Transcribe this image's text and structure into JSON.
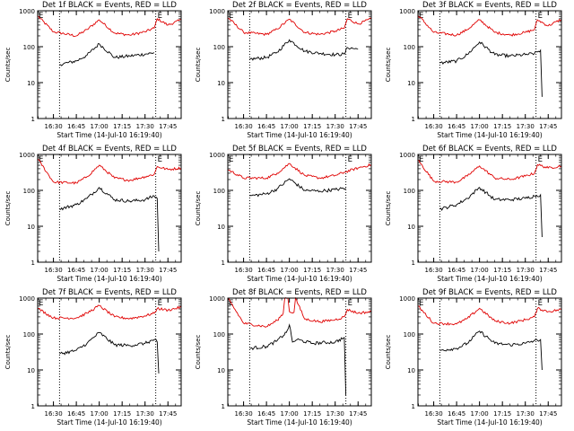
{
  "figure": {
    "panel_titles": [
      "Det 1f  BLACK = Events, RED = LLD",
      "Det 2f  BLACK = Events, RED = LLD",
      "Det 3f  BLACK = Events, RED = LLD",
      "Det 4f  BLACK = Events, RED = LLD",
      "Det 5f  BLACK = Events, RED = LLD",
      "Det 6f  BLACK = Events, RED = LLD",
      "Det 7f  BLACK = Events, RED = LLD",
      "Det 8f  BLACK = Events, RED = LLD",
      "Det 9f  BLACK = Events, RED = LLD"
    ],
    "ylabel": "Counts/sec",
    "xlabel": "Start Time (14-Jul-10 16:19:40)",
    "marker_letter": "E",
    "colors": {
      "events": "#000000",
      "lld": "#e00000",
      "axes": "#000000"
    }
  },
  "chart_data": {
    "type": "line",
    "layout": "3x3 grid",
    "x_unit": "time (UT, 14-Jul-10)",
    "xlim": [
      "16:19:40",
      "17:53:40"
    ],
    "x_ticks": [
      "16:30",
      "16:45",
      "17:00",
      "17:15",
      "17:30",
      "17:45"
    ],
    "y_scale": "log",
    "ylim": [
      1,
      1000
    ],
    "y_ticks": [
      "1",
      "10",
      "100",
      "1000"
    ],
    "vlines_dotted": [
      "16:34",
      "17:37"
    ],
    "panels": [
      {
        "title": "Det 1f  BLACK = Events, RED = LLD",
        "lld": {
          "x": [
            "16:19:40",
            "16:30",
            "16:45",
            "16:52",
            "17:00",
            "17:10",
            "17:20",
            "17:30",
            "17:36",
            "17:38",
            "17:45",
            "17:53:40"
          ],
          "y": [
            720,
            260,
            200,
            300,
            560,
            240,
            210,
            260,
            330,
            600,
            400,
            560
          ]
        },
        "events": {
          "x": [
            "16:34",
            "16:45",
            "16:52",
            "17:00",
            "17:10",
            "17:20",
            "17:30",
            "17:36"
          ],
          "y": [
            32,
            40,
            58,
            120,
            50,
            55,
            62,
            68
          ]
        }
      },
      {
        "title": "Det 2f  BLACK = Events, RED = LLD",
        "lld": {
          "x": [
            "16:19:40",
            "16:30",
            "16:45",
            "16:52",
            "17:00",
            "17:10",
            "17:20",
            "17:30",
            "17:36",
            "17:38",
            "17:45",
            "17:53:40"
          ],
          "y": [
            650,
            250,
            220,
            310,
            580,
            250,
            220,
            270,
            330,
            600,
            430,
            600
          ]
        },
        "events": {
          "x": [
            "16:34",
            "16:45",
            "16:52",
            "17:00",
            "17:10",
            "17:20",
            "17:30",
            "17:36",
            "17:38",
            "17:45"
          ],
          "y": [
            45,
            50,
            70,
            155,
            75,
            65,
            60,
            62,
            95,
            85
          ]
        }
      },
      {
        "title": "Det 3f  BLACK = Events, RED = LLD",
        "lld": {
          "x": [
            "16:19:40",
            "16:30",
            "16:45",
            "16:52",
            "17:00",
            "17:10",
            "17:20",
            "17:30",
            "17:36",
            "17:38",
            "17:45",
            "17:53:40"
          ],
          "y": [
            760,
            250,
            210,
            300,
            560,
            250,
            210,
            250,
            300,
            560,
            380,
            580
          ]
        },
        "events": {
          "x": [
            "16:34",
            "16:45",
            "16:52",
            "17:00",
            "17:10",
            "17:20",
            "17:30",
            "17:36",
            "17:40",
            "17:41"
          ],
          "y": [
            35,
            40,
            60,
            135,
            60,
            55,
            60,
            65,
            80,
            4
          ]
        }
      },
      {
        "title": "Det 4f  BLACK = Events, RED = LLD",
        "lld": {
          "x": [
            "16:19:40",
            "16:30",
            "16:45",
            "16:52",
            "17:00",
            "17:10",
            "17:20",
            "17:30",
            "17:36",
            "17:38",
            "17:45",
            "17:53:40"
          ],
          "y": [
            760,
            170,
            160,
            240,
            500,
            220,
            190,
            240,
            280,
            460,
            380,
            420
          ]
        },
        "events": {
          "x": [
            "16:34",
            "16:45",
            "16:52",
            "17:00",
            "17:10",
            "17:20",
            "17:30",
            "17:36",
            "17:38",
            "17:39"
          ],
          "y": [
            30,
            40,
            60,
            120,
            55,
            50,
            55,
            70,
            60,
            2
          ]
        }
      },
      {
        "title": "Det 5f  BLACK = Events, RED = LLD",
        "lld": {
          "x": [
            "16:19:40",
            "16:30",
            "16:45",
            "16:52",
            "17:00",
            "17:10",
            "17:20",
            "17:30",
            "17:36",
            "17:45",
            "17:53:40"
          ],
          "y": [
            380,
            220,
            220,
            300,
            560,
            260,
            220,
            260,
            320,
            420,
            520
          ]
        },
        "events": {
          "x": [
            "16:34",
            "16:45",
            "16:52",
            "17:00",
            "17:10",
            "17:20",
            "17:30",
            "17:37"
          ],
          "y": [
            70,
            80,
            110,
            210,
            100,
            95,
            105,
            115
          ]
        }
      },
      {
        "title": "Det 6f  BLACK = Events, RED = LLD",
        "lld": {
          "x": [
            "16:19:40",
            "16:30",
            "16:45",
            "16:52",
            "17:00",
            "17:10",
            "17:20",
            "17:30",
            "17:36",
            "17:38",
            "17:45",
            "17:53:40"
          ],
          "y": [
            700,
            180,
            170,
            250,
            480,
            220,
            200,
            250,
            300,
            520,
            420,
            480
          ]
        },
        "events": {
          "x": [
            "16:34",
            "16:45",
            "16:52",
            "17:00",
            "17:10",
            "17:20",
            "17:30",
            "17:36",
            "17:40",
            "17:41"
          ],
          "y": [
            30,
            40,
            60,
            120,
            55,
            55,
            60,
            70,
            75,
            5
          ]
        }
      },
      {
        "title": "Det 7f  BLACK = Events, RED = LLD",
        "lld": {
          "x": [
            "16:19:40",
            "16:30",
            "16:45",
            "16:52",
            "17:00",
            "17:10",
            "17:20",
            "17:30",
            "17:36",
            "17:38",
            "17:45",
            "17:53:40"
          ],
          "y": [
            520,
            280,
            280,
            380,
            620,
            300,
            270,
            320,
            380,
            520,
            460,
            560
          ]
        },
        "events": {
          "x": [
            "16:34",
            "16:45",
            "16:52",
            "17:00",
            "17:10",
            "17:20",
            "17:30",
            "17:36",
            "17:38",
            "17:39"
          ],
          "y": [
            28,
            35,
            55,
            110,
            50,
            48,
            55,
            70,
            60,
            8
          ]
        }
      },
      {
        "title": "Det 8f  BLACK = Events, RED = LLD",
        "lld": {
          "x": [
            "16:19:40",
            "16:30",
            "16:45",
            "16:52",
            "16:56",
            "16:57",
            "16:59",
            "17:00",
            "17:03",
            "17:04",
            "17:10",
            "17:20",
            "17:30",
            "17:36",
            "17:38",
            "17:45",
            "17:53:40"
          ],
          "y": [
            1000,
            200,
            160,
            240,
            380,
            1000,
            1000,
            420,
            400,
            1000,
            260,
            220,
            250,
            300,
            480,
            380,
            420
          ]
        },
        "events": {
          "x": [
            "16:34",
            "16:45",
            "16:52",
            "16:58",
            "17:00",
            "17:02",
            "17:05",
            "17:15",
            "17:30",
            "17:36",
            "17:37"
          ],
          "y": [
            40,
            45,
            65,
            110,
            180,
            60,
            70,
            55,
            60,
            80,
            2
          ]
        }
      },
      {
        "title": "Det 9f  BLACK = Events, RED = LLD",
        "lld": {
          "x": [
            "16:19:40",
            "16:30",
            "16:45",
            "16:52",
            "17:00",
            "17:10",
            "17:20",
            "17:30",
            "17:36",
            "17:38",
            "17:45",
            "17:53:40"
          ],
          "y": [
            600,
            200,
            190,
            270,
            520,
            230,
            200,
            250,
            300,
            520,
            420,
            480
          ]
        },
        "events": {
          "x": [
            "16:34",
            "16:45",
            "16:52",
            "17:00",
            "17:10",
            "17:20",
            "17:30",
            "17:36",
            "17:40",
            "17:41"
          ],
          "y": [
            35,
            40,
            55,
            120,
            55,
            50,
            55,
            65,
            70,
            10
          ]
        }
      }
    ]
  }
}
